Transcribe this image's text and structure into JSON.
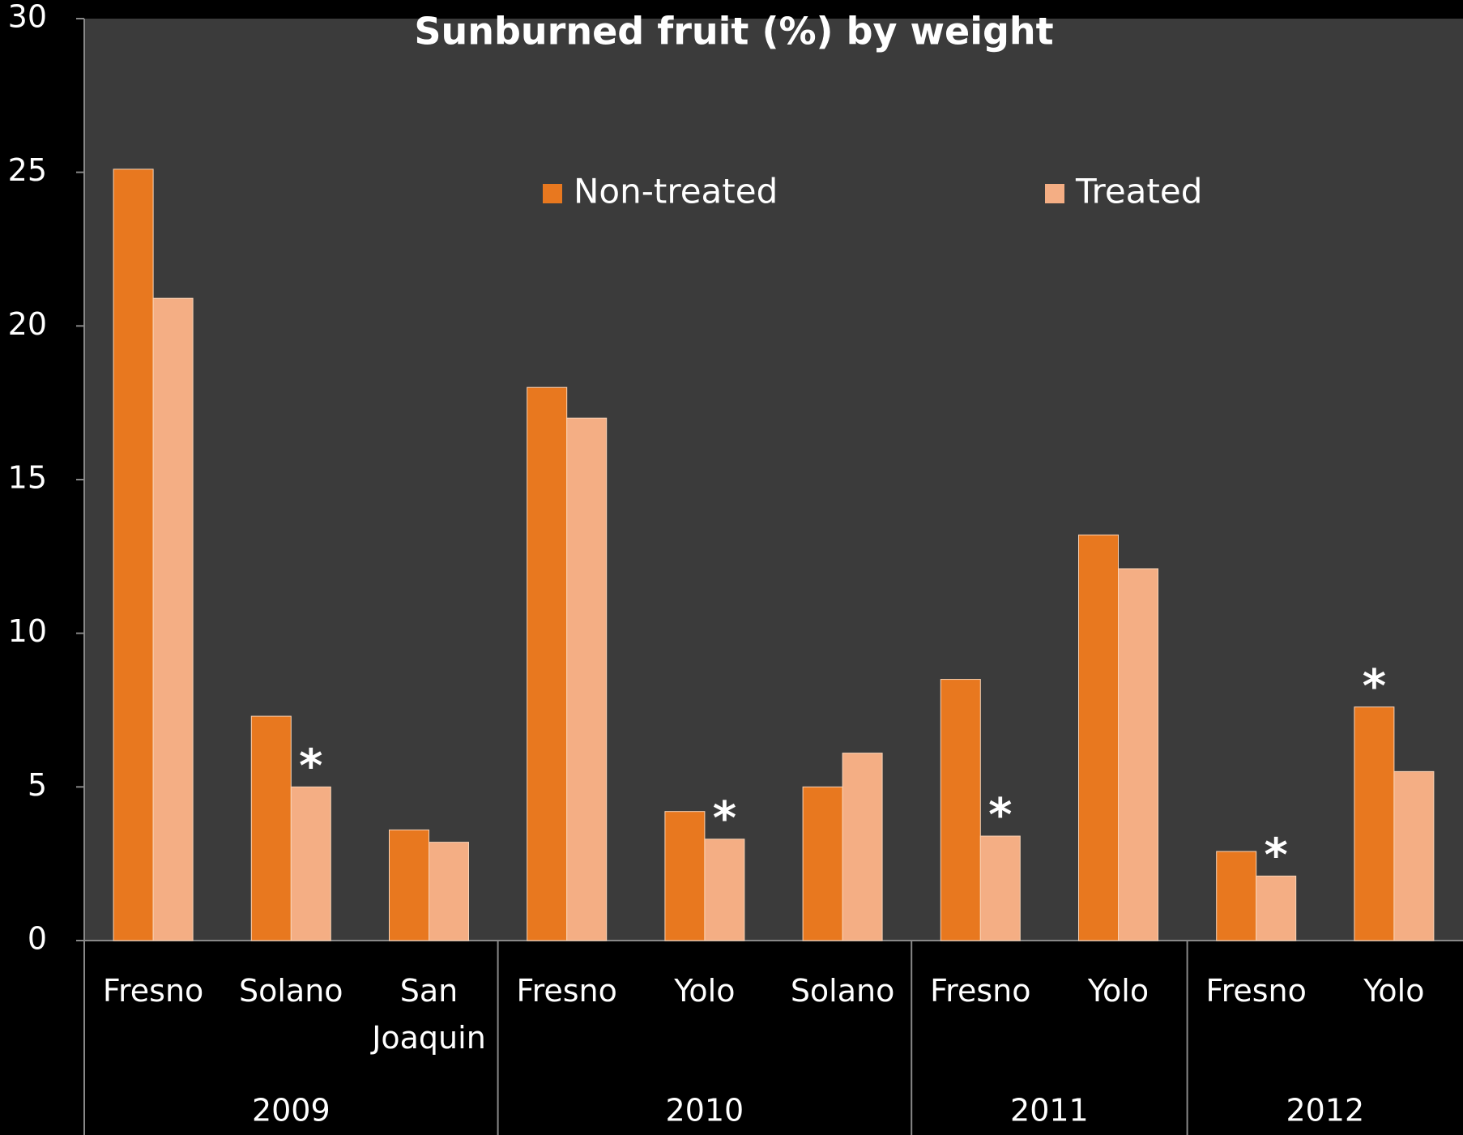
{
  "chart_data": {
    "type": "bar",
    "title": "Sunburned fruit (%) by weight",
    "groups": [
      {
        "name": "2009",
        "categories": [
          "Fresno",
          "Solano",
          "San Joaquin"
        ]
      },
      {
        "name": "2010",
        "categories": [
          "Fresno",
          "Yolo",
          "Solano"
        ]
      },
      {
        "name": "2011",
        "categories": [
          "Fresno",
          "Yolo"
        ]
      },
      {
        "name": "2012",
        "categories": [
          "Fresno",
          "Yolo"
        ]
      }
    ],
    "series": [
      {
        "name": "Non-treated",
        "color": "#e8781f",
        "values": [
          25.1,
          7.3,
          3.6,
          18.0,
          4.2,
          5.0,
          8.5,
          13.2,
          2.9,
          7.6
        ],
        "annotations": [
          null,
          null,
          null,
          null,
          null,
          null,
          null,
          null,
          null,
          "*"
        ]
      },
      {
        "name": "Treated",
        "color": "#f4ae84",
        "values": [
          20.9,
          5.0,
          3.2,
          17.0,
          3.3,
          6.1,
          3.4,
          12.1,
          2.1,
          5.5
        ],
        "annotations": [
          null,
          "*",
          null,
          null,
          "*",
          null,
          "*",
          null,
          "*",
          null
        ]
      }
    ],
    "ylim": [
      0,
      30
    ],
    "yticks": [
      0,
      5,
      10,
      15,
      20,
      25,
      30
    ],
    "legend": "top"
  }
}
